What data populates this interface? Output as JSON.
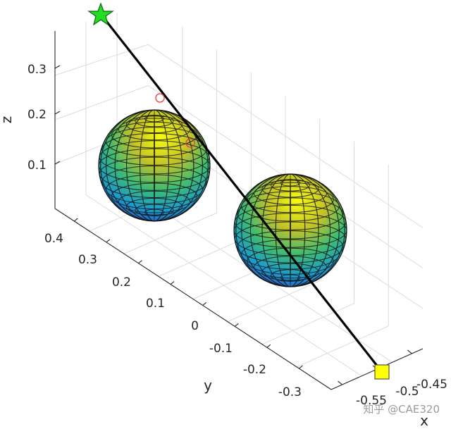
{
  "chart_data": {
    "type": "3d-line-with-spheres",
    "xlabel": "x",
    "ylabel": "y",
    "zlabel": "z",
    "x_ticks": [
      "-0.55",
      "-0.5",
      "-0.45"
    ],
    "y_ticks": [
      "0.4",
      "0.3",
      "0.2",
      "0.1",
      "0",
      "-0.1",
      "-0.2",
      "-0.3"
    ],
    "z_ticks": [
      "0.3",
      "0.2",
      "0.1"
    ],
    "grid": true,
    "path": {
      "color": "#000000",
      "start_marker": {
        "shape": "pentagram",
        "color": "#22dd22"
      },
      "end_marker": {
        "shape": "square",
        "color": "#ffff00"
      },
      "intersection_marker": {
        "shape": "circle",
        "color": "#e04040"
      }
    },
    "spheres": [
      {
        "name": "",
        "colormap": "parula"
      },
      {
        "name": "",
        "colormap": "parula"
      }
    ]
  },
  "watermark": "知乎 @CAE320"
}
